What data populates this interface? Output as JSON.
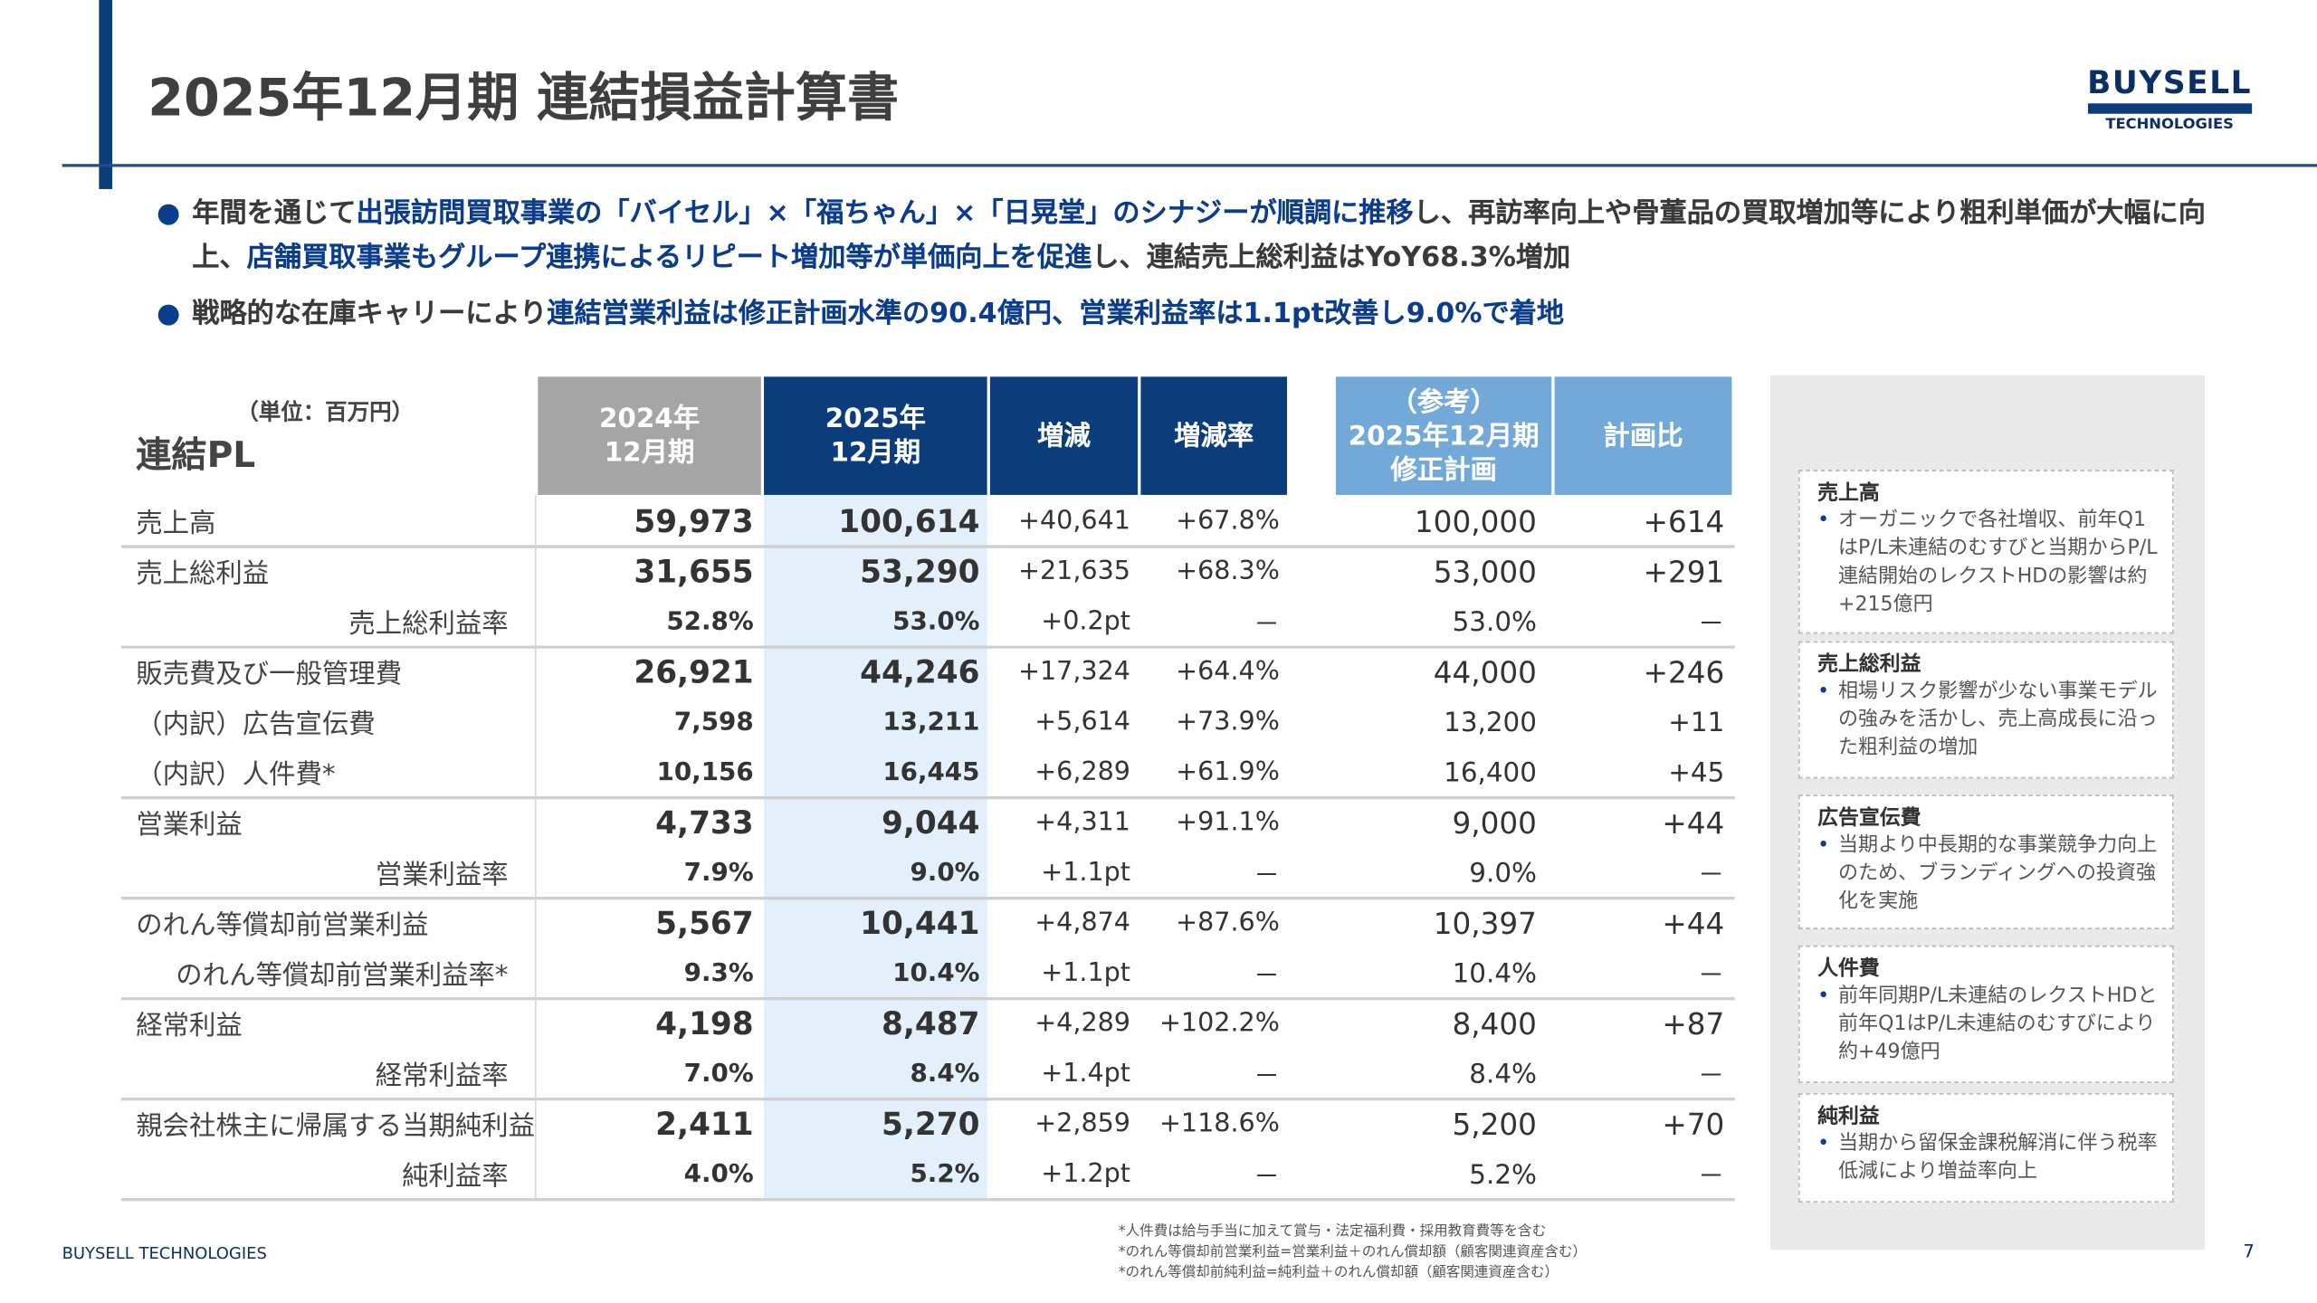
{
  "header": {
    "title": "2025年12月期 連結損益計算書",
    "logo": [
      "BUYSELL",
      "TECHNOLOGIES"
    ]
  },
  "bullets": [
    {
      "segments": [
        {
          "text": "年間を通じて",
          "highlight": false
        },
        {
          "text": "出張訪問買取事業の「バイセル」×「福ちゃん」×「日晃堂」のシナジーが順調に推移",
          "highlight": true
        },
        {
          "text": "し、再訪率向上や骨董品の買取増加等により粗利単価が大幅に向上、",
          "highlight": false
        },
        {
          "text": "店舗買取事業もグループ連携によるリピート増加等が単価向上を促進",
          "highlight": true
        },
        {
          "text": "し、連結売上総利益はYoY68.3%増加",
          "highlight": false
        }
      ]
    },
    {
      "segments": [
        {
          "text": "戦略的な在庫キャリーにより",
          "highlight": false
        },
        {
          "text": "連結営業利益は修正計画水準の90.4億円、営業利益率は1.1pt改善し9.0%で着地",
          "highlight": true
        }
      ]
    }
  ],
  "table": {
    "unit": "（単位：百万円）",
    "title": "連結PL",
    "columns": [
      {
        "lines": [
          "2024年",
          "12月期"
        ],
        "color": "#a5a5a5"
      },
      {
        "lines": [
          "2025年",
          "12月期"
        ],
        "color": "#0b3d7d"
      },
      {
        "lines": [
          "増減"
        ],
        "color": "#0b3d7d"
      },
      {
        "lines": [
          "増減率"
        ],
        "color": "#0b3d7d"
      },
      {
        "lines": [
          "（参考）",
          "2025年12月期",
          "修正計画"
        ],
        "color": "#72a9d8"
      },
      {
        "lines": [
          "計画比"
        ],
        "color": "#72a9d8"
      }
    ],
    "groups": [
      {
        "rows": [
          {
            "label": "売上高",
            "align": "left",
            "size": "large",
            "values": [
              "59,973",
              "100,614",
              "+40,641",
              "+67.8%",
              "100,000",
              "+614"
            ]
          }
        ]
      },
      {
        "rows": [
          {
            "label": "売上総利益",
            "align": "left",
            "size": "large",
            "values": [
              "31,655",
              "53,290",
              "+21,635",
              "+68.3%",
              "53,000",
              "+291"
            ]
          },
          {
            "label": "売上総利益率",
            "align": "right",
            "size": "small",
            "values": [
              "52.8%",
              "53.0%",
              "+0.2pt",
              "－",
              "53.0%",
              "－"
            ]
          }
        ]
      },
      {
        "rows": [
          {
            "label": "販売費及び一般管理費",
            "align": "left",
            "size": "large",
            "values": [
              "26,921",
              "44,246",
              "+17,324",
              "+64.4%",
              "44,000",
              "+246"
            ]
          },
          {
            "label": "（内訳）広告宣伝費",
            "align": "left",
            "size": "small",
            "values": [
              "7,598",
              "13,211",
              "+5,614",
              "+73.9%",
              "13,200",
              "+11"
            ]
          },
          {
            "label": "（内訳）人件費*",
            "align": "left",
            "size": "small",
            "values": [
              "10,156",
              "16,445",
              "+6,289",
              "+61.9%",
              "16,400",
              "+45"
            ]
          }
        ]
      },
      {
        "rows": [
          {
            "label": "営業利益",
            "align": "left",
            "size": "large",
            "values": [
              "4,733",
              "9,044",
              "+4,311",
              "+91.1%",
              "9,000",
              "+44"
            ]
          },
          {
            "label": "営業利益率",
            "align": "right",
            "size": "small",
            "values": [
              "7.9%",
              "9.0%",
              "+1.1pt",
              "－",
              "9.0%",
              "－"
            ]
          }
        ]
      },
      {
        "rows": [
          {
            "label": "のれん等償却前営業利益",
            "align": "left",
            "size": "large",
            "values": [
              "5,567",
              "10,441",
              "+4,874",
              "+87.6%",
              "10,397",
              "+44"
            ]
          },
          {
            "label": "のれん等償却前営業利益率*",
            "align": "right",
            "size": "small",
            "values": [
              "9.3%",
              "10.4%",
              "+1.1pt",
              "－",
              "10.4%",
              "－"
            ]
          }
        ]
      },
      {
        "rows": [
          {
            "label": "経常利益",
            "align": "left",
            "size": "large",
            "values": [
              "4,198",
              "8,487",
              "+4,289",
              "+102.2%",
              "8,400",
              "+87"
            ]
          },
          {
            "label": "経常利益率",
            "align": "right",
            "size": "small",
            "values": [
              "7.0%",
              "8.4%",
              "+1.4pt",
              "－",
              "8.4%",
              "－"
            ]
          }
        ]
      },
      {
        "rows": [
          {
            "label": "親会社株主に帰属する当期純利益",
            "align": "left",
            "size": "large",
            "values": [
              "2,411",
              "5,270",
              "+2,859",
              "+118.6%",
              "5,200",
              "+70"
            ]
          },
          {
            "label": "純利益率",
            "align": "right",
            "size": "small",
            "values": [
              "4.0%",
              "5.2%",
              "+1.2pt",
              "－",
              "5.2%",
              "－"
            ]
          }
        ]
      }
    ]
  },
  "notes": [
    {
      "title": "売上高",
      "text": "オーガニックで各社増収、前年Q1はP/L未連結のむすびと当期からP/L連結開始のレクストHDの影響は約+215億円"
    },
    {
      "title": "売上総利益",
      "text": "相場リスク影響が少ない事業モデルの強みを活かし、売上高成長に沿った粗利益の増加"
    },
    {
      "title": "広告宣伝費",
      "text": "当期より中長期的な事業競争力向上のため、ブランディングへの投資強化を実施"
    },
    {
      "title": "人件費",
      "text": "前年同期P/L未連結のレクストHDと前年Q1はP/L未連結のむすびにより約+49億円"
    },
    {
      "title": "純利益",
      "text": "当期から留保金課税解消に伴う税率低減により増益率向上"
    }
  ],
  "footer": {
    "company": "BUYSELL TECHNOLOGIES",
    "page": "7",
    "footnotes": [
      "*人件費は給与手当に加えて賞与・法定福利費・採用教育費等を含む",
      "*のれん等償却前営業利益=営業利益＋のれん償却額（顧客関連資産含む）",
      "*のれん等償却前純利益=純利益＋のれん償却額（顧客関連資産含む）"
    ]
  }
}
